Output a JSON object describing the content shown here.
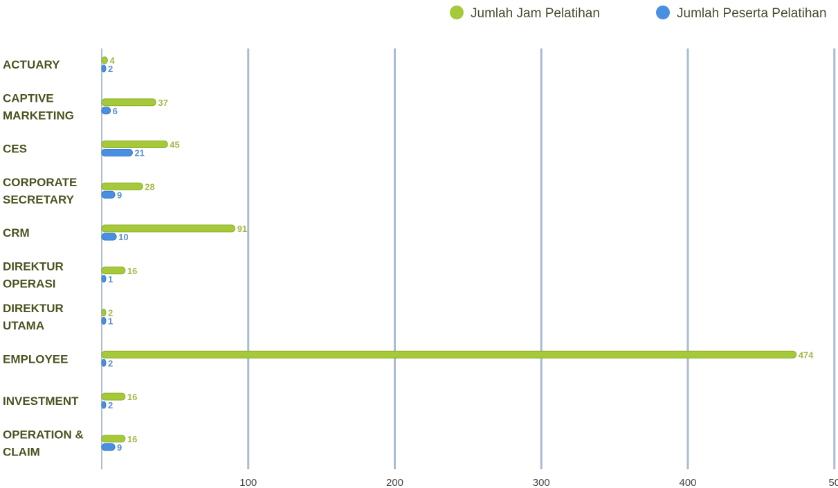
{
  "chart_data": {
    "type": "bar",
    "orientation": "horizontal",
    "categories": [
      [
        "ACTUARY"
      ],
      [
        "CAPTIVE",
        "MARKETING"
      ],
      [
        "CES"
      ],
      [
        "CORPORATE",
        "SECRETARY"
      ],
      [
        "CRM"
      ],
      [
        "DIREKTUR",
        "OPERASI"
      ],
      [
        "DIREKTUR",
        "UTAMA"
      ],
      [
        "EMPLOYEE"
      ],
      [
        "INVESTMENT"
      ],
      [
        "OPERATION &",
        "CLAIM"
      ]
    ],
    "series": [
      {
        "name": "Jumlah Jam Pelatihan",
        "color": "#a6c93a",
        "label_color": "#a3b84a",
        "values": [
          4,
          37,
          45,
          28,
          91,
          16,
          2,
          474,
          16,
          16
        ]
      },
      {
        "name": "Jumlah Peserta Pelatihan",
        "color": "#4a90e2",
        "label_color": "#5a8fd0",
        "values": [
          2,
          6,
          21,
          9,
          10,
          1,
          1,
          2,
          2,
          9
        ]
      }
    ],
    "x_ticks": [
      "100",
      "200",
      "300",
      "400",
      "50"
    ],
    "xlim": [
      0,
      500
    ],
    "grid": true,
    "legend_position": "top-right"
  }
}
